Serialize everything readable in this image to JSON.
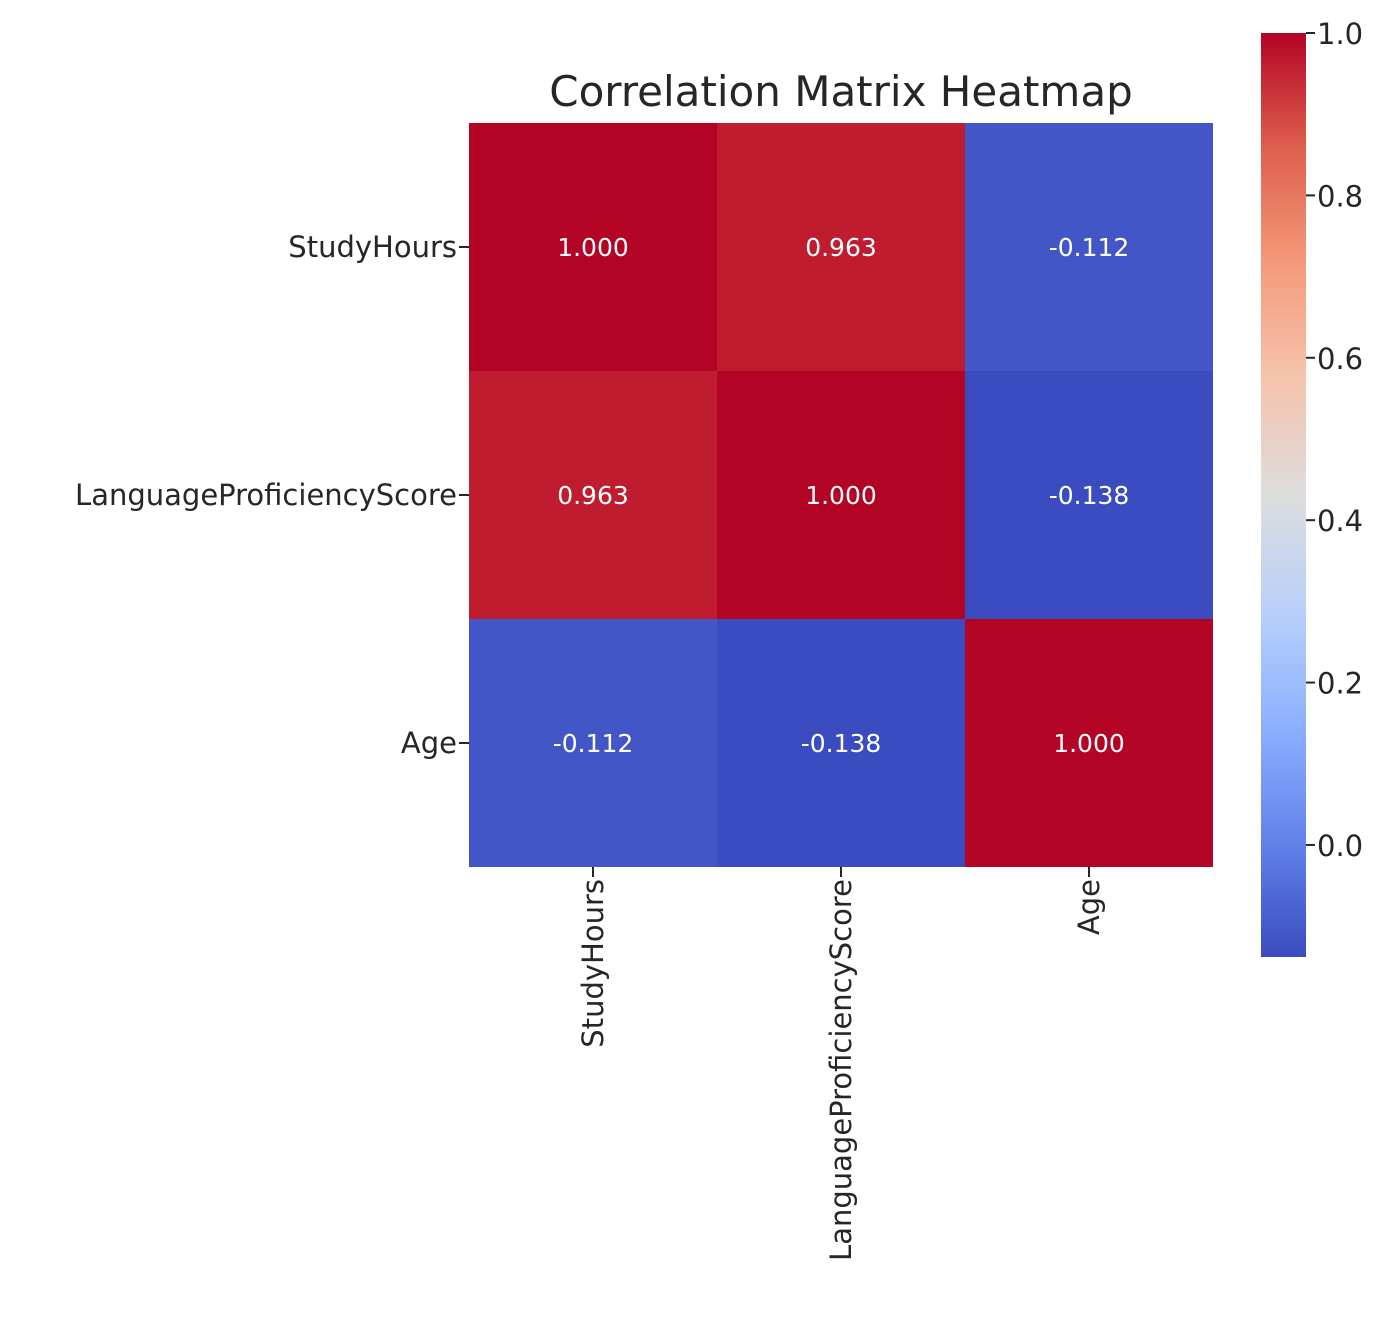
{
  "chart_data": {
    "type": "heatmap",
    "title": "Correlation Matrix Heatmap",
    "xlabel": "",
    "ylabel": "",
    "x_categories": [
      "StudyHours",
      "LanguageProficiencyScore",
      "Age"
    ],
    "y_categories": [
      "StudyHours",
      "LanguageProficiencyScore",
      "Age"
    ],
    "values": [
      [
        1.0,
        0.963,
        -0.112
      ],
      [
        0.963,
        1.0,
        -0.138
      ],
      [
        -0.112,
        -0.138,
        1.0
      ]
    ],
    "annotation_labels": [
      [
        "1.000",
        "0.963",
        "-0.112"
      ],
      [
        "0.963",
        "1.000",
        "-0.138"
      ],
      [
        "-0.112",
        "-0.138",
        "1.000"
      ]
    ],
    "colorbar": {
      "colormap": "coolwarm",
      "range": [
        -0.138,
        1.0
      ],
      "tick_labels": [
        "0.0",
        "0.2",
        "0.4",
        "0.6",
        "0.8",
        "1.0"
      ],
      "tick_values": [
        0.0,
        0.2,
        0.4,
        0.6,
        0.8,
        1.0
      ]
    },
    "grid": false
  }
}
